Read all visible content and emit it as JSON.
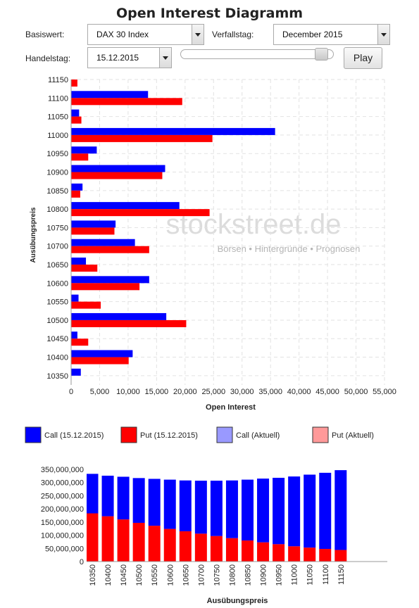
{
  "page_title": "Open Interest Diagramm",
  "controls": {
    "basiswert_label": "Basiswert:",
    "basiswert_value": "DAX 30 Index",
    "verfallstag_label": "Verfallstag:",
    "verfallstag_value": "December 2015",
    "handelstag_label": "Handelstag:",
    "handelstag_value": "15.12.2015",
    "slider_position": 0.96,
    "play_label": "Play"
  },
  "watermark": {
    "brand": "stockstreet.de",
    "tagline": "Börsen • Hintergründe • Prognosen"
  },
  "chart_data": [
    {
      "type": "bar",
      "orientation": "horizontal",
      "xlabel": "Open Interest",
      "ylabel": "Ausübungspreis",
      "xlim": [
        0,
        55000
      ],
      "xticks": [
        0,
        5000,
        10000,
        15000,
        20000,
        25000,
        30000,
        35000,
        40000,
        45000,
        50000,
        55000
      ],
      "xtick_labels": [
        "0",
        "5,000",
        "10,000",
        "15,000",
        "20,000",
        "25,000",
        "30,000",
        "35,000",
        "40,000",
        "45,000",
        "50,000",
        "55,000"
      ],
      "grid": true,
      "categories": [
        "11150",
        "11100",
        "11050",
        "11000",
        "10950",
        "10900",
        "10850",
        "10800",
        "10750",
        "10700",
        "10650",
        "10600",
        "10550",
        "10500",
        "10450",
        "10400",
        "10350"
      ],
      "series": [
        {
          "name": "Call (15.12.2015)",
          "color": "#0000ff",
          "values": [
            0,
            13500,
            1400,
            35800,
            4500,
            16500,
            2000,
            19000,
            7800,
            11200,
            2600,
            13700,
            1300,
            16700,
            1100,
            10800,
            1700
          ]
        },
        {
          "name": "Put (15.12.2015)",
          "color": "#ff0000",
          "values": [
            1100,
            19500,
            1800,
            24800,
            3000,
            16000,
            1600,
            24300,
            7600,
            13700,
            4600,
            12000,
            5200,
            20200,
            3000,
            10100,
            0
          ]
        }
      ]
    },
    {
      "type": "bar",
      "stacked": true,
      "xlabel": "Ausübungspreis",
      "ylabel": "",
      "ylim": [
        0,
        350000000
      ],
      "yticks": [
        0,
        50000000,
        100000000,
        150000000,
        200000000,
        250000000,
        300000000,
        350000000
      ],
      "ytick_labels": [
        "0",
        "50,000,000",
        "100,000,000",
        "150,000,000",
        "200,000,000",
        "250,000,000",
        "300,000,000",
        "350,000,000"
      ],
      "categories": [
        "10350",
        "10400",
        "10450",
        "10500",
        "10550",
        "10600",
        "10650",
        "10700",
        "10750",
        "10800",
        "10850",
        "10900",
        "10950",
        "11000",
        "11050",
        "11100",
        "11150"
      ],
      "series": [
        {
          "name": "Put",
          "color": "#ff0000",
          "values": [
            183000000,
            172000000,
            160000000,
            147000000,
            136000000,
            124000000,
            115000000,
            106000000,
            97000000,
            89000000,
            80000000,
            73000000,
            66000000,
            58000000,
            53000000,
            48000000,
            44000000
          ]
        },
        {
          "name": "Call",
          "color": "#0000ff",
          "values": [
            150000000,
            154000000,
            162000000,
            170000000,
            178000000,
            187000000,
            193000000,
            201000000,
            210000000,
            219000000,
            231000000,
            242000000,
            252000000,
            265000000,
            277000000,
            289000000,
            303000000
          ]
        }
      ]
    }
  ],
  "legend": [
    {
      "label": "Call (15.12.2015)",
      "color": "#0000ff"
    },
    {
      "label": "Put (15.12.2015)",
      "color": "#ff0000"
    },
    {
      "label": "Call (Aktuell)",
      "color": "#9999ff"
    },
    {
      "label": "Put (Aktuell)",
      "color": "#ff9999"
    }
  ]
}
